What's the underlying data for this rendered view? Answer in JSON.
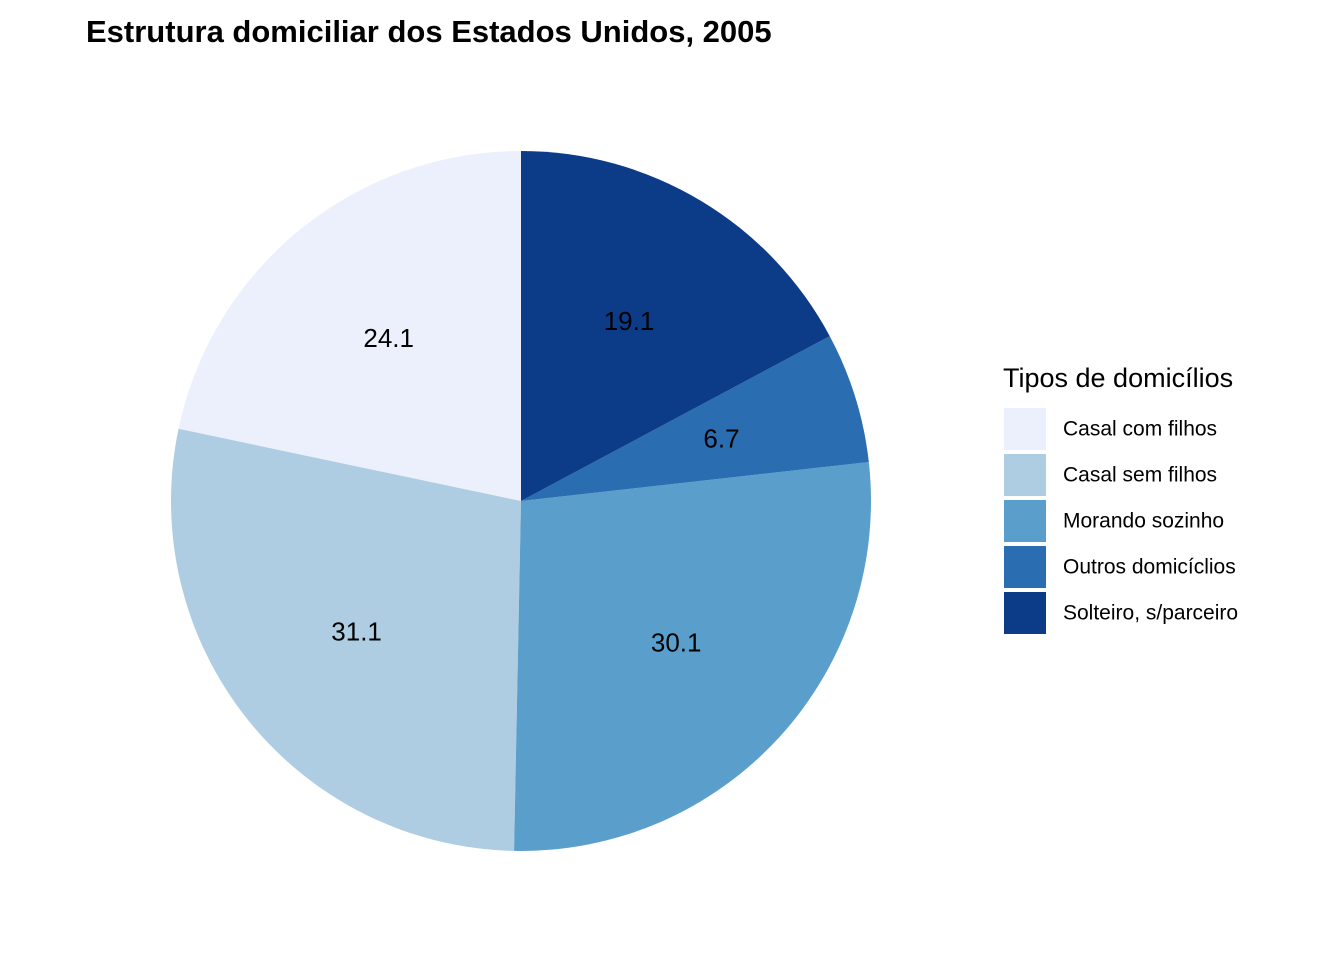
{
  "chart_data": {
    "type": "pie",
    "title": "Estrutura domiciliar dos Estados Unidos, 2005",
    "legend_title": "Tipos de domicílios",
    "legend_position": "right",
    "start": "top",
    "direction": "counterclockwise",
    "slices": [
      {
        "category": "Casal com filhos",
        "value": 24.1,
        "label": "24.1",
        "color": "#EBF0FC"
      },
      {
        "category": "Casal sem filhos",
        "value": 31.1,
        "label": "31.1",
        "color": "#AFCDE2"
      },
      {
        "category": "Morando sozinho",
        "value": 30.1,
        "label": "30.1",
        "color": "#5A9ECB"
      },
      {
        "category": "Outros domicíclios",
        "value": 6.7,
        "label": "6.7",
        "color": "#2A6DB0"
      },
      {
        "category": "Solteiro, s/parceiro",
        "value": 19.1,
        "label": "19.1",
        "color": "#0C3B88"
      }
    ]
  }
}
